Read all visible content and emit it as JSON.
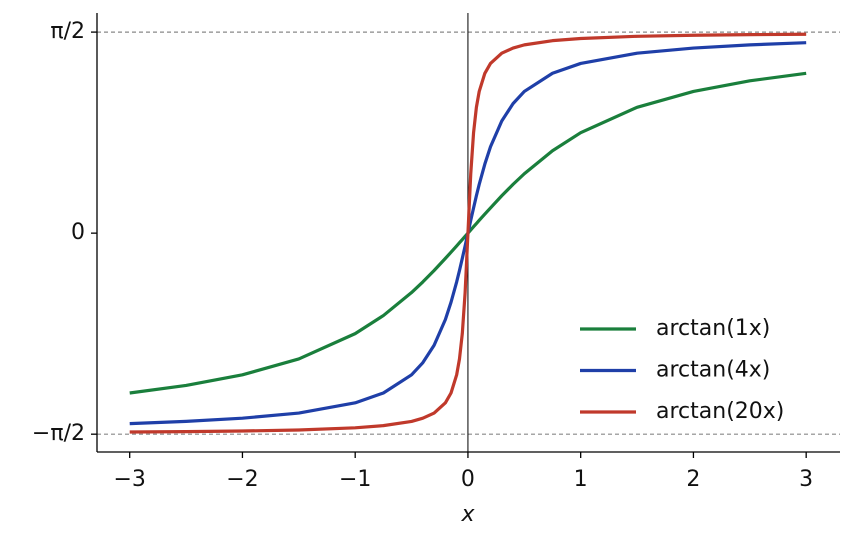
{
  "chart_data": {
    "type": "line",
    "x_label": "x",
    "x": [
      -3,
      -2.5,
      -2,
      -1.5,
      -1,
      -0.75,
      -0.5,
      -0.4,
      -0.3,
      -0.2,
      -0.15,
      -0.1,
      -0.075,
      -0.05,
      -0.025,
      0,
      0.025,
      0.05,
      0.075,
      0.1,
      0.15,
      0.2,
      0.3,
      0.4,
      0.5,
      0.75,
      1,
      1.5,
      2,
      2.5,
      3
    ],
    "series": [
      {
        "name": "arctan(1x)",
        "color": "#1a7f3c",
        "values": [
          -1.249,
          -1.19,
          -1.107,
          -0.983,
          -0.785,
          -0.644,
          -0.464,
          -0.381,
          -0.292,
          -0.197,
          -0.149,
          -0.1,
          -0.075,
          -0.05,
          -0.025,
          0,
          0.025,
          0.05,
          0.075,
          0.1,
          0.149,
          0.197,
          0.292,
          0.381,
          0.464,
          0.644,
          0.785,
          0.983,
          1.107,
          1.19,
          1.249
        ]
      },
      {
        "name": "arctan(4x)",
        "color": "#1f3fa8",
        "values": [
          -1.488,
          -1.471,
          -1.446,
          -1.406,
          -1.326,
          -1.249,
          -1.107,
          -1.012,
          -0.876,
          -0.675,
          -0.54,
          -0.381,
          -0.292,
          -0.197,
          -0.1,
          0,
          0.1,
          0.197,
          0.292,
          0.381,
          0.54,
          0.675,
          0.876,
          1.012,
          1.107,
          1.249,
          1.326,
          1.406,
          1.446,
          1.471,
          1.488
        ]
      },
      {
        "name": "arctan(20x)",
        "color": "#c0392b",
        "values": [
          -1.554,
          -1.551,
          -1.546,
          -1.538,
          -1.521,
          -1.504,
          -1.471,
          -1.446,
          -1.406,
          -1.326,
          -1.249,
          -1.107,
          -0.983,
          -0.785,
          -0.464,
          0,
          0.464,
          0.785,
          0.983,
          1.107,
          1.249,
          1.326,
          1.406,
          1.446,
          1.471,
          1.504,
          1.521,
          1.538,
          1.546,
          1.551,
          1.554
        ]
      }
    ],
    "xlim": [
      -3.29,
      3.3
    ],
    "ylim": [
      -1.71,
      1.72
    ],
    "xticks": [
      {
        "value": -3,
        "label": "−3"
      },
      {
        "value": -2,
        "label": "−2"
      },
      {
        "value": -1,
        "label": "−1"
      },
      0,
      1,
      2,
      3
    ],
    "yticks": [
      {
        "value": -1.5708,
        "label": "−π/2"
      },
      0,
      {
        "value": 1.5708,
        "label": "π/2"
      }
    ],
    "reference_lines": {
      "y": [
        -1.5708,
        1.5708
      ],
      "x": [
        0
      ]
    },
    "legend": "lower right"
  }
}
